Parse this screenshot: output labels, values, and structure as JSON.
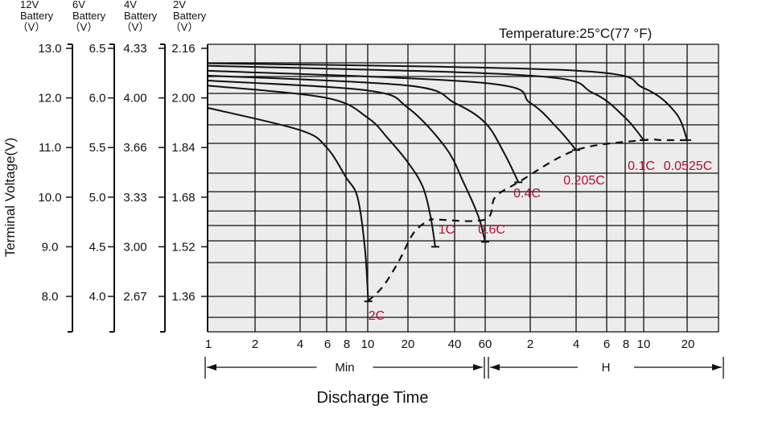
{
  "chart_data": {
    "type": "line",
    "title": "Temperature:25°C(77 °F)",
    "ylabel": "Terminal Voltage(V)",
    "xlabel": "Discharge Time",
    "x_axis_groups": [
      {
        "label": "Min",
        "ticks": [
          "1",
          "2",
          "4",
          "6",
          "8",
          "10",
          "20",
          "40",
          "60"
        ]
      },
      {
        "label": "H",
        "ticks": [
          "2",
          "4",
          "6",
          "8",
          "10",
          "20"
        ]
      }
    ],
    "x_scale": "log",
    "battery_axes": [
      {
        "header": [
          "12V",
          "Battery",
          "（V）"
        ],
        "ticks": [
          "13.0",
          "12.0",
          "11.0",
          "10.0",
          "9.0",
          "8.0"
        ]
      },
      {
        "header": [
          "6V",
          "Battery",
          "（V）"
        ],
        "ticks": [
          "6.5",
          "6.0",
          "5.5",
          "5.0",
          "4.5",
          "4.0"
        ]
      },
      {
        "header": [
          "4V",
          "Battery",
          "（V）"
        ],
        "ticks": [
          "4.33",
          "4.00",
          "3.66",
          "3.33",
          "3.00",
          "2.67"
        ]
      },
      {
        "header": [
          "2V",
          "Battery",
          "（V）"
        ],
        "ticks": [
          "2.16",
          "2.00",
          "1.84",
          "1.68",
          "1.52",
          "1.36"
        ]
      }
    ],
    "ylim": [
      7.3,
      13.5
    ],
    "xlim_minutes": [
      1,
      1500
    ],
    "grid": true,
    "series": [
      {
        "name": "2C",
        "points": [
          [
            1,
            11.8
          ],
          [
            4,
            11.35
          ],
          [
            6,
            11.0
          ],
          [
            8,
            10.4
          ],
          [
            9,
            10.0
          ],
          [
            9.7,
            9.0
          ],
          [
            10.1,
            7.9
          ]
        ]
      },
      {
        "name": "1C",
        "points": [
          [
            1,
            12.25
          ],
          [
            6,
            12.0
          ],
          [
            10,
            11.6
          ],
          [
            14,
            11.2
          ],
          [
            20,
            10.7
          ],
          [
            25,
            10.2
          ],
          [
            28,
            9.6
          ],
          [
            30,
            9.0
          ]
        ]
      },
      {
        "name": "0.6C",
        "points": [
          [
            1,
            12.35
          ],
          [
            10,
            12.15
          ],
          [
            20,
            11.8
          ],
          [
            35,
            11.0
          ],
          [
            45,
            10.3
          ],
          [
            55,
            9.6
          ],
          [
            60,
            9.1
          ]
        ]
      },
      {
        "name": "0.4C",
        "points": [
          [
            1,
            12.45
          ],
          [
            20,
            12.25
          ],
          [
            40,
            11.9
          ],
          [
            60,
            11.5
          ],
          [
            80,
            10.9
          ],
          [
            100,
            10.3
          ]
        ]
      },
      {
        "name": "0.205C",
        "points": [
          [
            1,
            12.55
          ],
          [
            60,
            12.3
          ],
          [
            120,
            11.9
          ],
          [
            180,
            11.4
          ],
          [
            240,
            10.95
          ]
        ]
      },
      {
        "name": "0.1C",
        "points": [
          [
            1,
            12.65
          ],
          [
            120,
            12.45
          ],
          [
            300,
            12.1
          ],
          [
            480,
            11.6
          ],
          [
            600,
            11.15
          ]
        ]
      },
      {
        "name": "0.0525C",
        "points": [
          [
            1,
            12.7
          ],
          [
            240,
            12.55
          ],
          [
            600,
            12.2
          ],
          [
            1000,
            11.7
          ],
          [
            1200,
            11.15
          ]
        ]
      }
    ],
    "cutoff_line": {
      "style": "dashed",
      "points": [
        [
          10,
          7.9
        ],
        [
          13,
          8.2
        ],
        [
          17,
          8.7
        ],
        [
          22,
          9.3
        ],
        [
          28,
          9.55
        ],
        [
          30,
          9.55
        ],
        [
          60,
          9.55
        ],
        [
          70,
          10.0
        ],
        [
          100,
          10.3
        ],
        [
          240,
          10.95
        ],
        [
          600,
          11.15
        ],
        [
          800,
          11.15
        ],
        [
          1200,
          11.15
        ]
      ]
    }
  }
}
